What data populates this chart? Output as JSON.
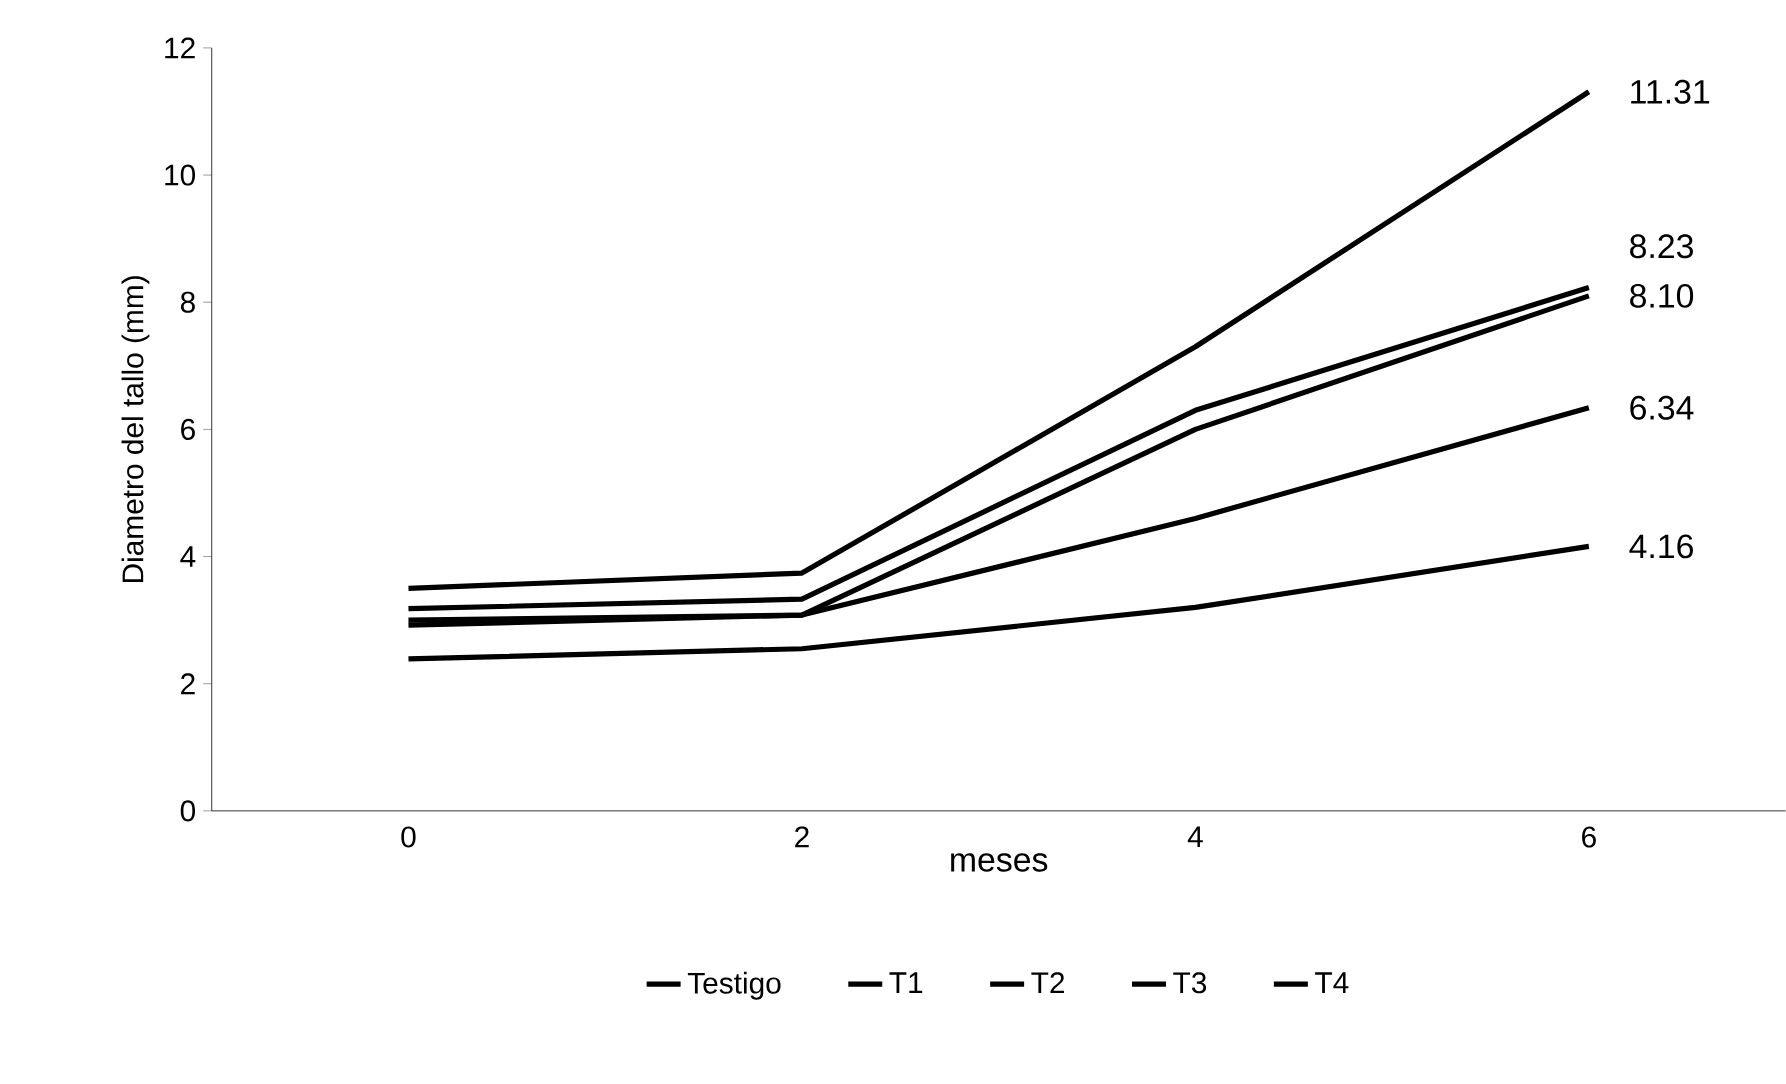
{
  "chart_data": {
    "type": "line",
    "xlabel": "meses",
    "ylabel": "Diametro del tallo (mm)",
    "categories": [
      "0",
      "2",
      "4",
      "6"
    ],
    "series": [
      {
        "name": "Testigo",
        "color": "#000000",
        "values": [
          2.39,
          2.55,
          3.2,
          4.16
        ],
        "value_labels": [
          null,
          null,
          null,
          "4.16"
        ]
      },
      {
        "name": "T1",
        "color": "#000000",
        "values": [
          2.92,
          3.08,
          4.6,
          6.34
        ],
        "value_labels": [
          null,
          null,
          null,
          "6.34"
        ]
      },
      {
        "name": "T2",
        "color": "#000000",
        "values": [
          3.0,
          3.08,
          6.0,
          8.1
        ],
        "value_labels": [
          null,
          null,
          null,
          "8.10"
        ]
      },
      {
        "name": "T3",
        "color": "#000000",
        "values": [
          3.18,
          3.33,
          6.3,
          8.23
        ],
        "value_labels": [
          null,
          null,
          null,
          "8.23"
        ]
      },
      {
        "name": "T4",
        "color": "#000000",
        "values": [
          3.5,
          3.74,
          7.3,
          11.31
        ],
        "value_labels": [
          null,
          null,
          null,
          "11.31"
        ]
      }
    ],
    "ylim": [
      0,
      12
    ],
    "yticks": [
      0,
      2,
      4,
      6,
      8,
      10,
      12
    ],
    "grid": false,
    "legend": "bottom",
    "marker": "none",
    "line_style": "solid"
  }
}
